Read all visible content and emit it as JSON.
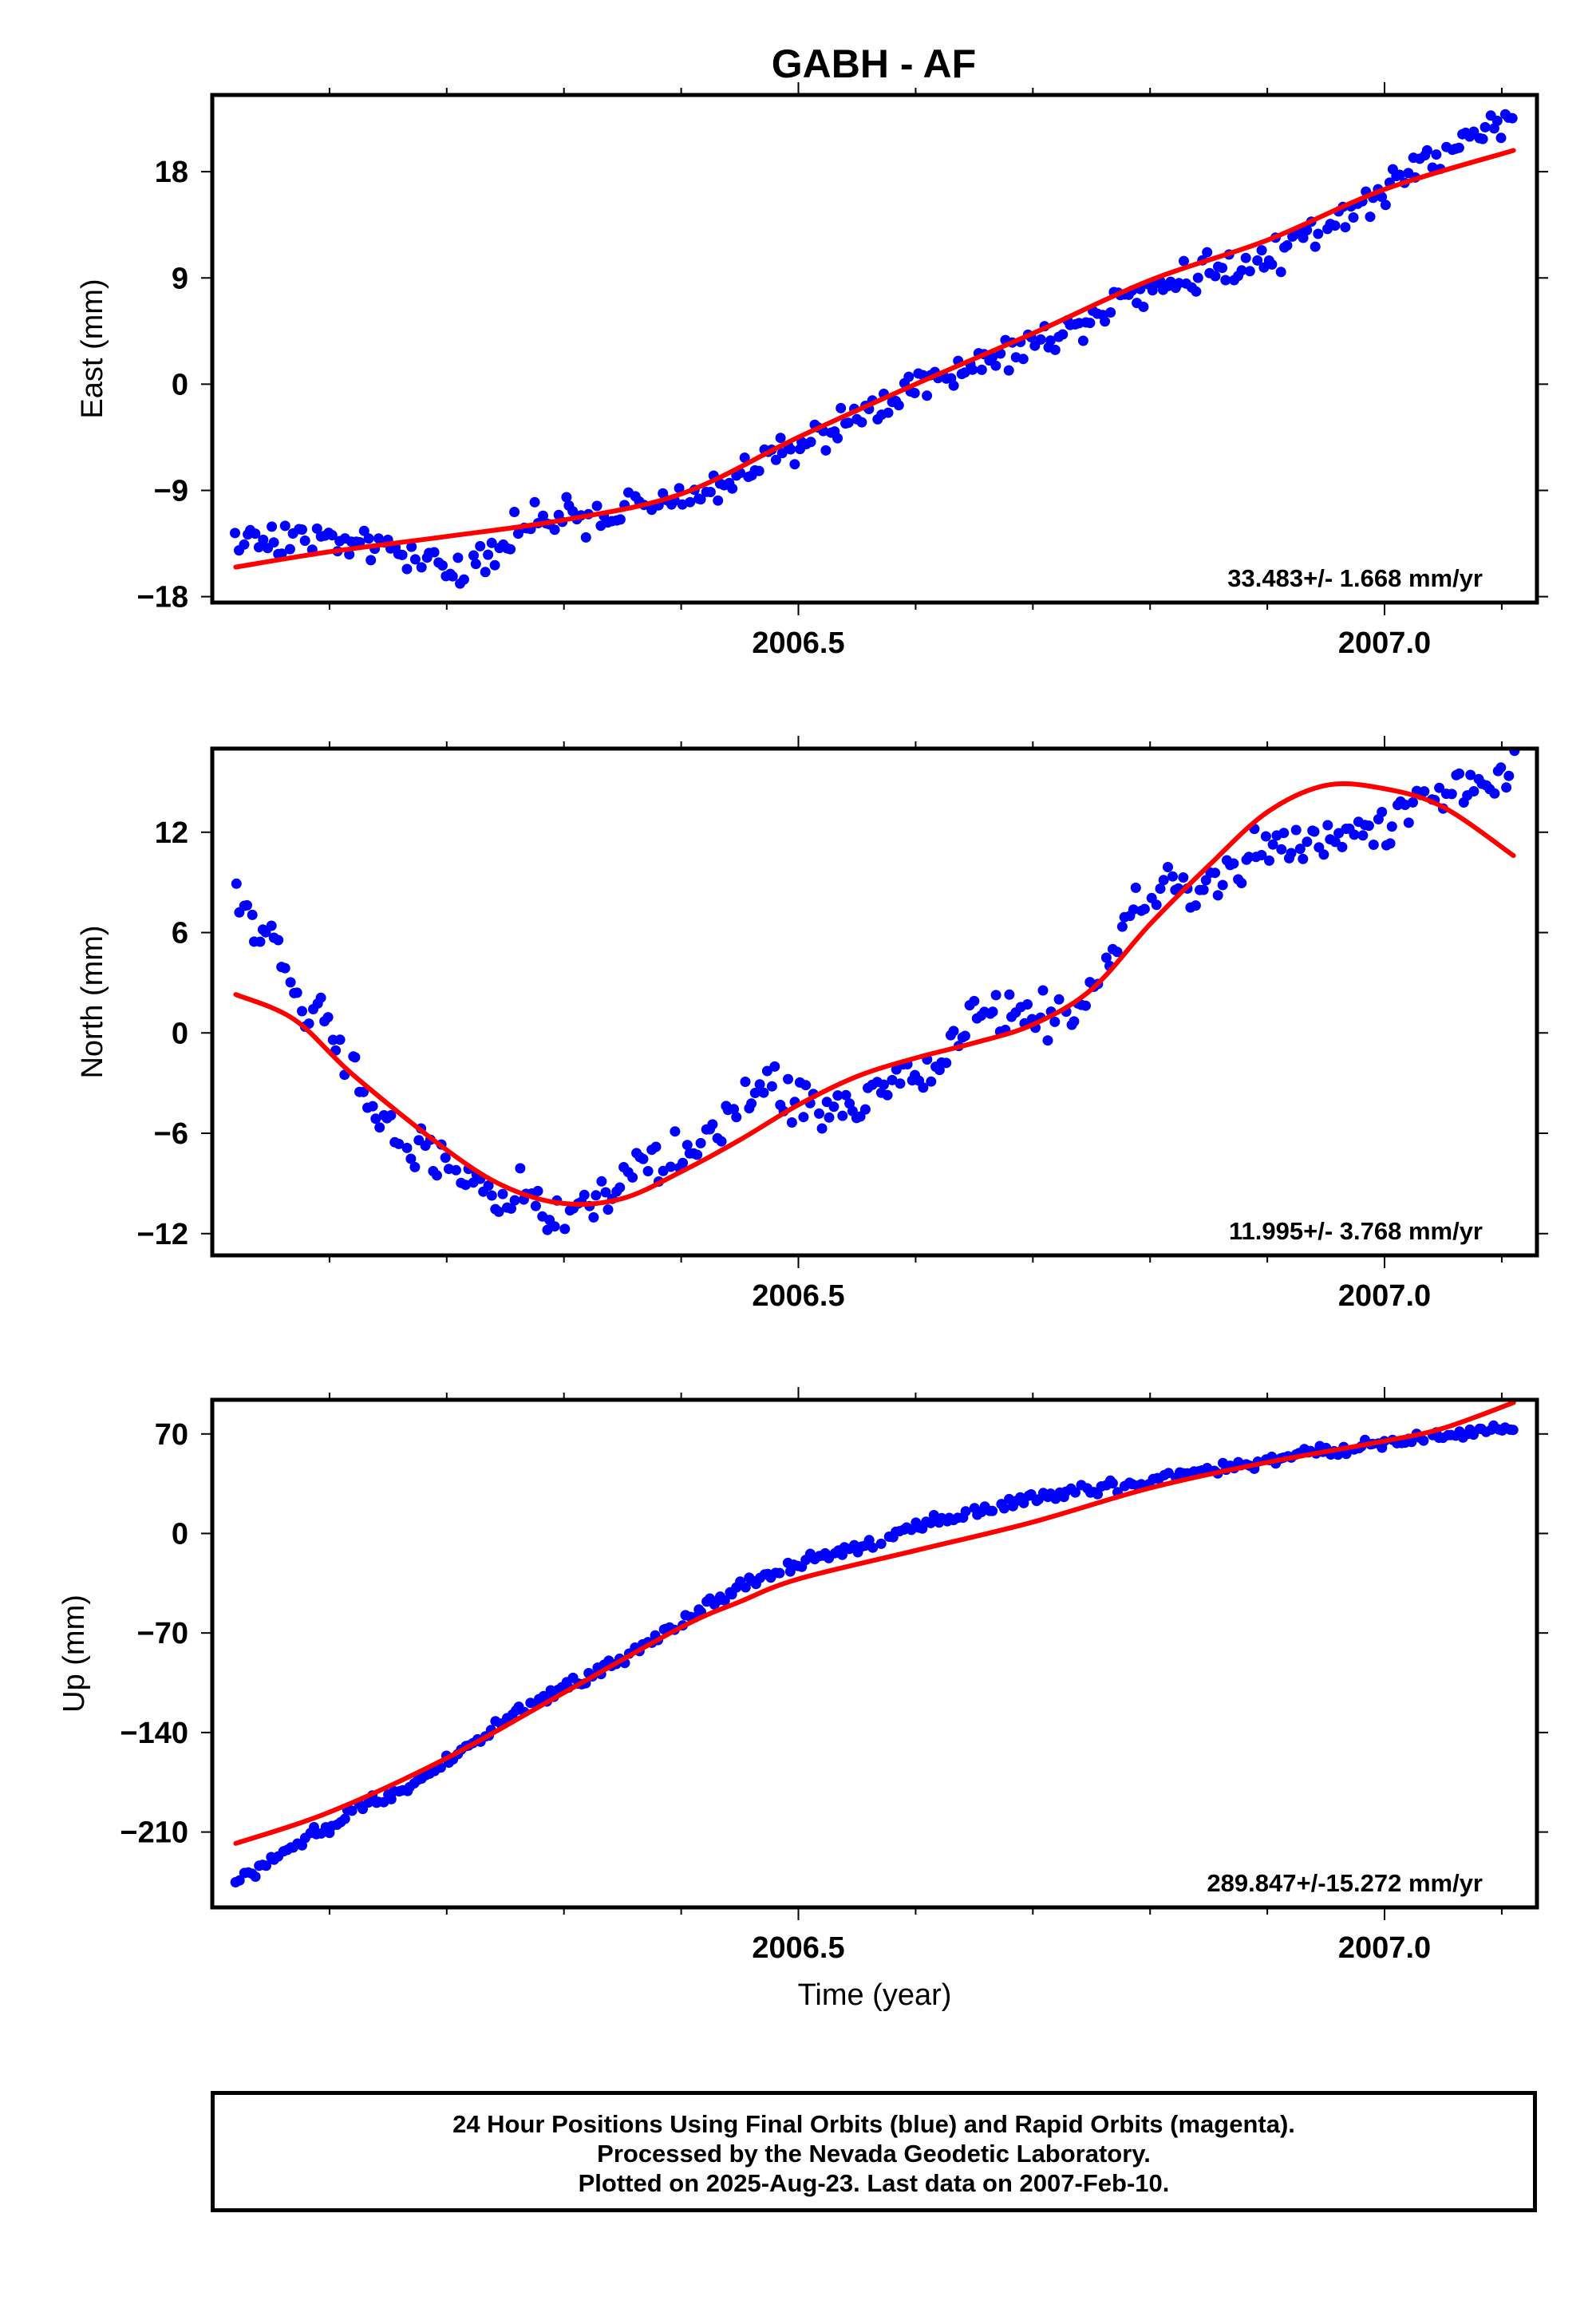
{
  "title": "GABH - AF",
  "footer": {
    "line1": "24 Hour Positions Using Final Orbits (blue) and Rapid Orbits (magenta).",
    "line2": "Processed by the Nevada Geodetic Laboratory.",
    "line3": "Plotted on 2025-Aug-23. Last data on 2007-Feb-10."
  },
  "colors": {
    "points": "#0000ff",
    "fit": "#ff0000",
    "frame": "#000000"
  },
  "chart_data": [
    {
      "type": "scatter",
      "ylabel": "East (mm)",
      "xlabel": "",
      "xlim": [
        2006.0,
        2007.13
      ],
      "ylim": [
        -18.5,
        24.5
      ],
      "yticks": [
        18,
        9,
        0,
        -9,
        -18
      ],
      "ytick_labels": [
        "18",
        "9",
        "0",
        "−9",
        "−18"
      ],
      "xticks": [
        2006.5,
        2007.0
      ],
      "xtick_labels": [
        "2006.5",
        "2007.0"
      ],
      "rate_label": "33.483+/- 1.668 mm/yr",
      "series": [
        {
          "kind": "points",
          "x_start": 2006.02,
          "x_end": 2007.11,
          "anchors": [
            [
              2006.02,
              -13.2
            ],
            [
              2006.1,
              -13.4
            ],
            [
              2006.18,
              -14.2
            ],
            [
              2006.21,
              -16.0
            ],
            [
              2006.27,
              -11.8
            ],
            [
              2006.35,
              -10.8
            ],
            [
              2006.42,
              -9.2
            ],
            [
              2006.47,
              -6.8
            ],
            [
              2006.52,
              -4.0
            ],
            [
              2006.58,
              -1.2
            ],
            [
              2006.65,
              1.8
            ],
            [
              2006.72,
              4.2
            ],
            [
              2006.8,
              8.5
            ],
            [
              2006.86,
              9.8
            ],
            [
              2006.92,
              11.5
            ],
            [
              2006.98,
              15.0
            ],
            [
              2007.05,
              19.8
            ],
            [
              2007.11,
              22.5
            ]
          ],
          "noise": 1.3
        },
        {
          "kind": "fit",
          "anchors": [
            [
              2006.02,
              -15.5
            ],
            [
              2006.1,
              -14.2
            ],
            [
              2006.2,
              -12.9
            ],
            [
              2006.3,
              -11.5
            ],
            [
              2006.4,
              -9.3
            ],
            [
              2006.5,
              -4.5
            ],
            [
              2006.6,
              0.0
            ],
            [
              2006.7,
              4.3
            ],
            [
              2006.8,
              8.8
            ],
            [
              2006.9,
              12.2
            ],
            [
              2007.0,
              16.5
            ],
            [
              2007.11,
              19.8
            ]
          ]
        }
      ]
    },
    {
      "type": "scatter",
      "ylabel": "North (mm)",
      "xlabel": "",
      "xlim": [
        2006.0,
        2007.13
      ],
      "ylim": [
        -13.3,
        17.0
      ],
      "yticks": [
        12,
        6,
        0,
        -6,
        -12
      ],
      "ytick_labels": [
        "12",
        "6",
        "0",
        "−6",
        "−12"
      ],
      "xticks": [
        2006.5,
        2007.0
      ],
      "xtick_labels": [
        "2006.5",
        "2007.0"
      ],
      "rate_label": "11.995+/- 3.768 mm/yr",
      "series": [
        {
          "kind": "points",
          "x_start": 2006.02,
          "x_end": 2007.11,
          "anchors": [
            [
              2006.02,
              8.0
            ],
            [
              2006.05,
              5.5
            ],
            [
              2006.08,
              1.5
            ],
            [
              2006.1,
              0.5
            ],
            [
              2006.13,
              -4.0
            ],
            [
              2006.17,
              -7.0
            ],
            [
              2006.22,
              -9.0
            ],
            [
              2006.28,
              -10.5
            ],
            [
              2006.3,
              -11.5
            ],
            [
              2006.35,
              -8.5
            ],
            [
              2006.4,
              -7.5
            ],
            [
              2006.44,
              -5.0
            ],
            [
              2006.48,
              -3.0
            ],
            [
              2006.52,
              -5.0
            ],
            [
              2006.57,
              -3.5
            ],
            [
              2006.62,
              -2.0
            ],
            [
              2006.65,
              1.5
            ],
            [
              2006.7,
              1.0
            ],
            [
              2006.75,
              1.5
            ],
            [
              2006.78,
              7.5
            ],
            [
              2006.82,
              8.5
            ],
            [
              2006.86,
              9.0
            ],
            [
              2006.9,
              11.5
            ],
            [
              2006.95,
              11.5
            ],
            [
              2007.0,
              12.0
            ],
            [
              2007.05,
              14.5
            ],
            [
              2007.11,
              15.5
            ]
          ],
          "noise": 1.3
        },
        {
          "kind": "fit",
          "anchors": [
            [
              2006.02,
              2.3
            ],
            [
              2006.07,
              0.8
            ],
            [
              2006.12,
              -2.5
            ],
            [
              2006.2,
              -7.0
            ],
            [
              2006.25,
              -9.2
            ],
            [
              2006.3,
              -10.2
            ],
            [
              2006.35,
              -9.9
            ],
            [
              2006.4,
              -8.3
            ],
            [
              2006.45,
              -6.4
            ],
            [
              2006.5,
              -4.3
            ],
            [
              2006.55,
              -2.6
            ],
            [
              2006.6,
              -1.5
            ],
            [
              2006.65,
              -0.6
            ],
            [
              2006.7,
              0.5
            ],
            [
              2006.75,
              2.6
            ],
            [
              2006.8,
              6.5
            ],
            [
              2006.85,
              10.0
            ],
            [
              2006.9,
              13.2
            ],
            [
              2006.95,
              14.8
            ],
            [
              2007.0,
              14.6
            ],
            [
              2007.05,
              13.5
            ],
            [
              2007.11,
              10.6
            ]
          ]
        }
      ]
    },
    {
      "type": "scatter",
      "ylabel": "Up (mm)",
      "xlabel": "Time (year)",
      "xlim": [
        2006.0,
        2007.13
      ],
      "ylim": [
        -263,
        94
      ],
      "yticks": [
        70,
        0,
        -70,
        -140,
        -210
      ],
      "ytick_labels": [
        "70",
        "0",
        "−70",
        "−140",
        "−210"
      ],
      "xticks": [
        2006.5,
        2007.0
      ],
      "xtick_labels": [
        "2006.5",
        "2007.0"
      ],
      "rate_label": "289.847+/-15.272 mm/yr",
      "series": [
        {
          "kind": "points",
          "x_start": 2006.02,
          "x_end": 2007.11,
          "anchors": [
            [
              2006.02,
              -245
            ],
            [
              2006.08,
              -215
            ],
            [
              2006.12,
              -195
            ],
            [
              2006.18,
              -172
            ],
            [
              2006.25,
              -132
            ],
            [
              2006.3,
              -108
            ],
            [
              2006.35,
              -88
            ],
            [
              2006.4,
              -62
            ],
            [
              2006.45,
              -38
            ],
            [
              2006.5,
              -20
            ],
            [
              2006.55,
              -10
            ],
            [
              2006.6,
              5
            ],
            [
              2006.65,
              15
            ],
            [
              2006.7,
              25
            ],
            [
              2006.75,
              30
            ],
            [
              2006.8,
              38
            ],
            [
              2006.85,
              45
            ],
            [
              2006.9,
              52
            ],
            [
              2006.95,
              58
            ],
            [
              2007.0,
              63
            ],
            [
              2007.05,
              70
            ],
            [
              2007.11,
              75
            ]
          ],
          "noise": 4
        },
        {
          "kind": "fit",
          "anchors": [
            [
              2006.02,
              -218
            ],
            [
              2006.1,
              -196
            ],
            [
              2006.2,
              -158
            ],
            [
              2006.3,
              -112
            ],
            [
              2006.4,
              -66
            ],
            [
              2006.45,
              -48
            ],
            [
              2006.5,
              -32
            ],
            [
              2006.6,
              -12
            ],
            [
              2006.7,
              8
            ],
            [
              2006.8,
              32
            ],
            [
              2006.9,
              50
            ],
            [
              2007.0,
              65
            ],
            [
              2007.05,
              74
            ],
            [
              2007.11,
              92
            ]
          ]
        }
      ]
    }
  ]
}
